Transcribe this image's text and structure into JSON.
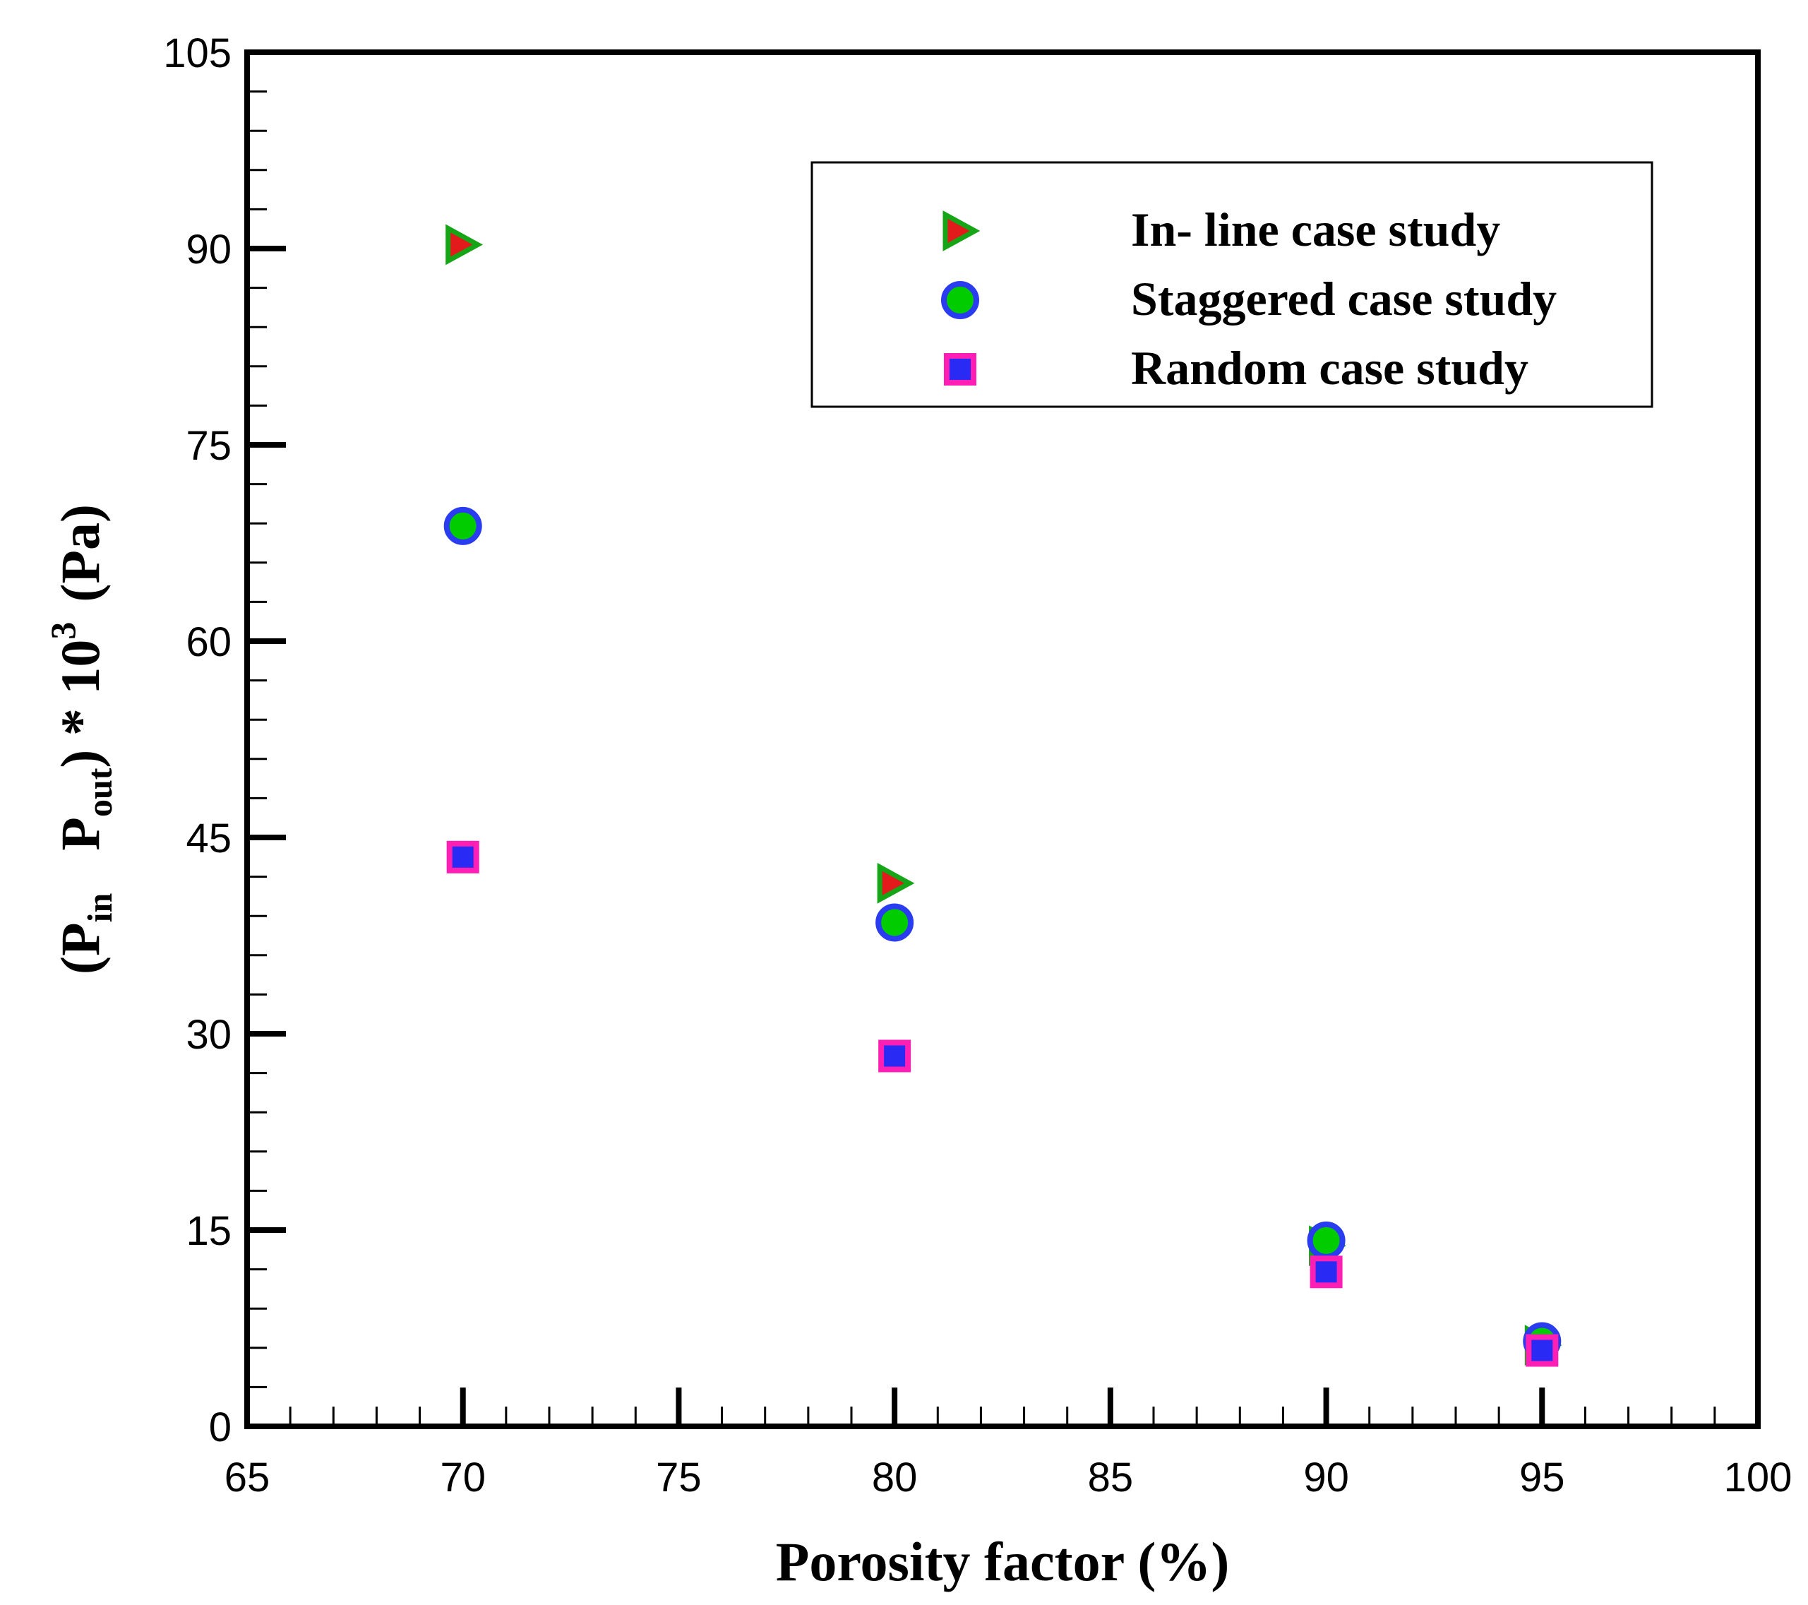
{
  "chart_data": {
    "type": "scatter",
    "xlabel": "Porosity factor (%)",
    "ylabel": {
      "open": "(P",
      "sub1": "in",
      "mid": "P",
      "sub2": "out",
      "close": ") * 10",
      "sup": "3",
      "unit": "(Pa)"
    },
    "xlim": [
      65,
      100
    ],
    "ylim": [
      0,
      105
    ],
    "xticks": [
      65,
      70,
      75,
      80,
      85,
      90,
      95,
      100
    ],
    "yticks": [
      0,
      15,
      30,
      45,
      60,
      75,
      90,
      105
    ],
    "x_minor_step": 1,
    "y_minor_step": 3,
    "legend_position": "top-right",
    "series": [
      {
        "name": "In- line case study",
        "marker": "triangle-right",
        "fill": "#e31a1c",
        "stroke": "#16a516",
        "x": [
          70,
          80,
          90,
          95
        ],
        "y": [
          90.3,
          41.5,
          13.8,
          6.2
        ]
      },
      {
        "name": "Staggered case study",
        "marker": "circle",
        "fill": "#00cc00",
        "stroke": "#2a3cf0",
        "x": [
          70,
          80,
          90,
          95
        ],
        "y": [
          68.8,
          38.5,
          14.2,
          6.5
        ]
      },
      {
        "name": "Random case study",
        "marker": "square",
        "fill": "#2a2af5",
        "stroke": "#ff1fb4",
        "x": [
          70,
          80,
          90,
          95
        ],
        "y": [
          43.5,
          28.3,
          11.8,
          5.8
        ]
      }
    ]
  }
}
